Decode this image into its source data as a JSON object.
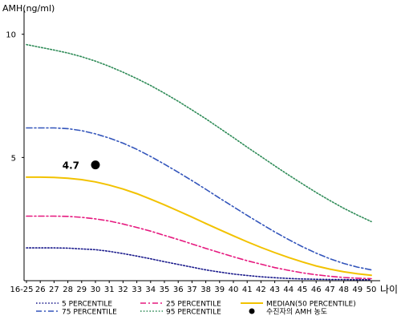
{
  "chart_data": {
    "type": "line",
    "ylabel": "AMH(ng/ml)",
    "xlabel": "나이",
    "ylim": [
      0,
      11
    ],
    "y_ticks": [
      5,
      10
    ],
    "x": [
      "16-25",
      "26",
      "27",
      "28",
      "29",
      "30",
      "31",
      "32",
      "33",
      "34",
      "35",
      "36",
      "37",
      "38",
      "39",
      "40",
      "41",
      "42",
      "43",
      "44",
      "45",
      "46",
      "47",
      "48",
      "49",
      "50"
    ],
    "grid": false,
    "legend_position": "bottom",
    "series": [
      {
        "name": "5 PERCENTILE",
        "color": "#1a1a8c",
        "dash": "dot",
        "values": [
          1.33,
          1.33,
          1.33,
          1.32,
          1.29,
          1.26,
          1.19,
          1.1,
          1.0,
          0.89,
          0.77,
          0.66,
          0.55,
          0.44,
          0.35,
          0.27,
          0.21,
          0.16,
          0.12,
          0.09,
          0.07,
          0.06,
          0.05,
          0.05,
          0.04,
          0.04
        ]
      },
      {
        "name": "25 PERCENTILE",
        "color": "#e6197f",
        "dash": "dashdot",
        "values": [
          2.62,
          2.62,
          2.62,
          2.61,
          2.57,
          2.51,
          2.42,
          2.3,
          2.16,
          2.01,
          1.84,
          1.67,
          1.49,
          1.31,
          1.14,
          0.97,
          0.81,
          0.67,
          0.53,
          0.42,
          0.32,
          0.24,
          0.18,
          0.13,
          0.1,
          0.08
        ]
      },
      {
        "name": "MEDIAN(50 PERCENTILE)",
        "color": "#f2c200",
        "dash": "solid",
        "values": [
          4.2,
          4.2,
          4.19,
          4.16,
          4.1,
          4.01,
          3.88,
          3.72,
          3.53,
          3.31,
          3.08,
          2.83,
          2.58,
          2.32,
          2.07,
          1.82,
          1.58,
          1.35,
          1.14,
          0.94,
          0.76,
          0.6,
          0.47,
          0.36,
          0.28,
          0.22
        ]
      },
      {
        "name": "75 PERCENTILE",
        "color": "#3355bb",
        "dash": "dashdot",
        "values": [
          6.2,
          6.2,
          6.2,
          6.17,
          6.09,
          5.96,
          5.79,
          5.58,
          5.33,
          5.04,
          4.73,
          4.4,
          4.06,
          3.71,
          3.35,
          3.0,
          2.65,
          2.31,
          1.98,
          1.67,
          1.38,
          1.12,
          0.89,
          0.7,
          0.55,
          0.44
        ]
      },
      {
        "name": "95 PERCENTILE",
        "color": "#2e8b57",
        "dash": "dot",
        "values": [
          9.58,
          9.47,
          9.36,
          9.24,
          9.09,
          8.91,
          8.7,
          8.46,
          8.2,
          7.92,
          7.61,
          7.28,
          6.93,
          6.57,
          6.19,
          5.81,
          5.42,
          5.04,
          4.66,
          4.29,
          3.93,
          3.58,
          3.25,
          2.94,
          2.66,
          2.4
        ]
      }
    ],
    "point": {
      "label": "수진자의 AMH 농도",
      "x": "30",
      "y": 4.7,
      "value_label": "4.7",
      "color": "#000000"
    }
  }
}
